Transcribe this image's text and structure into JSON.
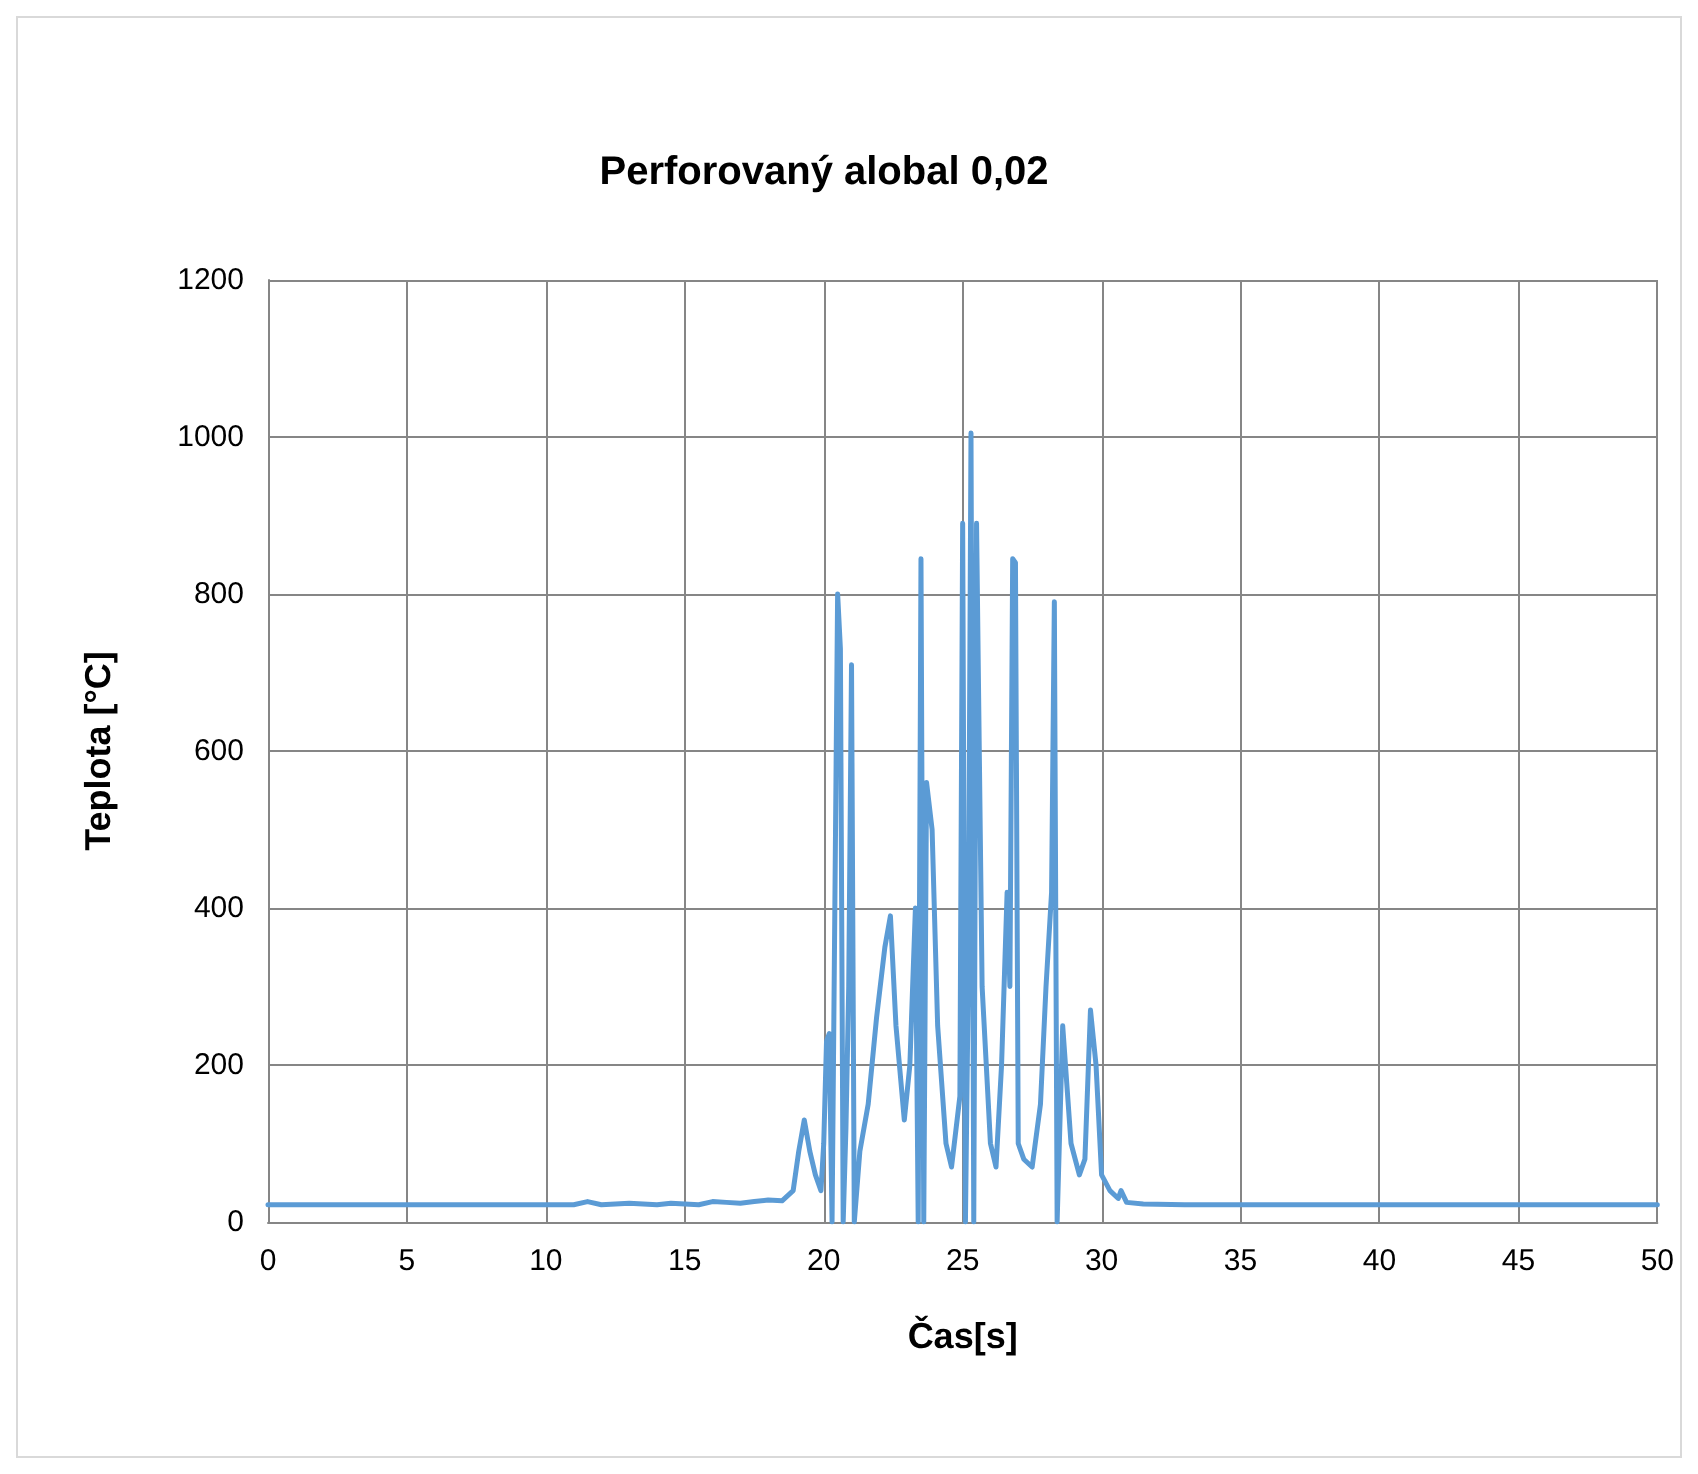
{
  "chart_data": {
    "type": "line",
    "title": "Perforovaný alobal 0,02",
    "xlabel": "Čas[s]",
    "ylabel": "Teplota [°C]",
    "xlim": [
      0,
      50
    ],
    "xticks": [
      0,
      5,
      10,
      15,
      20,
      25,
      30,
      35,
      40,
      45,
      50
    ],
    "ylim": [
      0,
      1200
    ],
    "yticks": [
      0,
      200,
      400,
      600,
      800,
      1000,
      1200
    ],
    "grid": true,
    "marker": "none",
    "line_style": "solid",
    "series": [
      {
        "color": "#5b9bd5",
        "x": [
          0,
          5,
          10,
          11,
          11.5,
          12,
          12.5,
          13,
          13.5,
          14,
          14.5,
          15,
          15.5,
          16,
          16.5,
          17,
          17.5,
          18,
          18.5,
          18.9,
          19.1,
          19.3,
          19.5,
          19.7,
          19.9,
          20.0,
          20.1,
          20.2,
          20.3,
          20.4,
          20.5,
          20.6,
          20.7,
          20.8,
          20.9,
          21.0,
          21.1,
          21.3,
          21.6,
          21.9,
          22.2,
          22.4,
          22.6,
          22.9,
          23.1,
          23.3,
          23.4,
          23.5,
          23.6,
          23.7,
          23.9,
          24.1,
          24.4,
          24.6,
          24.9,
          25.0,
          25.1,
          25.2,
          25.3,
          25.4,
          25.5,
          25.7,
          26.0,
          26.2,
          26.4,
          26.6,
          26.7,
          26.8,
          26.9,
          27.0,
          27.2,
          27.5,
          27.8,
          28.0,
          28.2,
          28.3,
          28.4,
          28.6,
          28.9,
          29.2,
          29.4,
          29.6,
          29.8,
          30.0,
          30.3,
          30.6,
          30.7,
          30.9,
          31.5,
          33,
          35,
          40,
          45,
          50
        ],
        "values": [
          22,
          22,
          22,
          22,
          26,
          22,
          23,
          24,
          23,
          22,
          24,
          23,
          22,
          26,
          25,
          24,
          26,
          28,
          27,
          40,
          90,
          130,
          90,
          60,
          40,
          100,
          230,
          240,
          0,
          400,
          800,
          730,
          0,
          120,
          300,
          710,
          0,
          90,
          150,
          260,
          350,
          390,
          250,
          130,
          200,
          400,
          0,
          845,
          0,
          560,
          500,
          250,
          100,
          70,
          160,
          890,
          0,
          300,
          1005,
          0,
          890,
          300,
          100,
          70,
          200,
          420,
          300,
          845,
          840,
          100,
          80,
          70,
          150,
          300,
          420,
          790,
          0,
          250,
          100,
          60,
          80,
          270,
          200,
          60,
          40,
          30,
          40,
          25,
          23,
          22,
          22,
          22,
          22,
          22
        ]
      }
    ]
  }
}
